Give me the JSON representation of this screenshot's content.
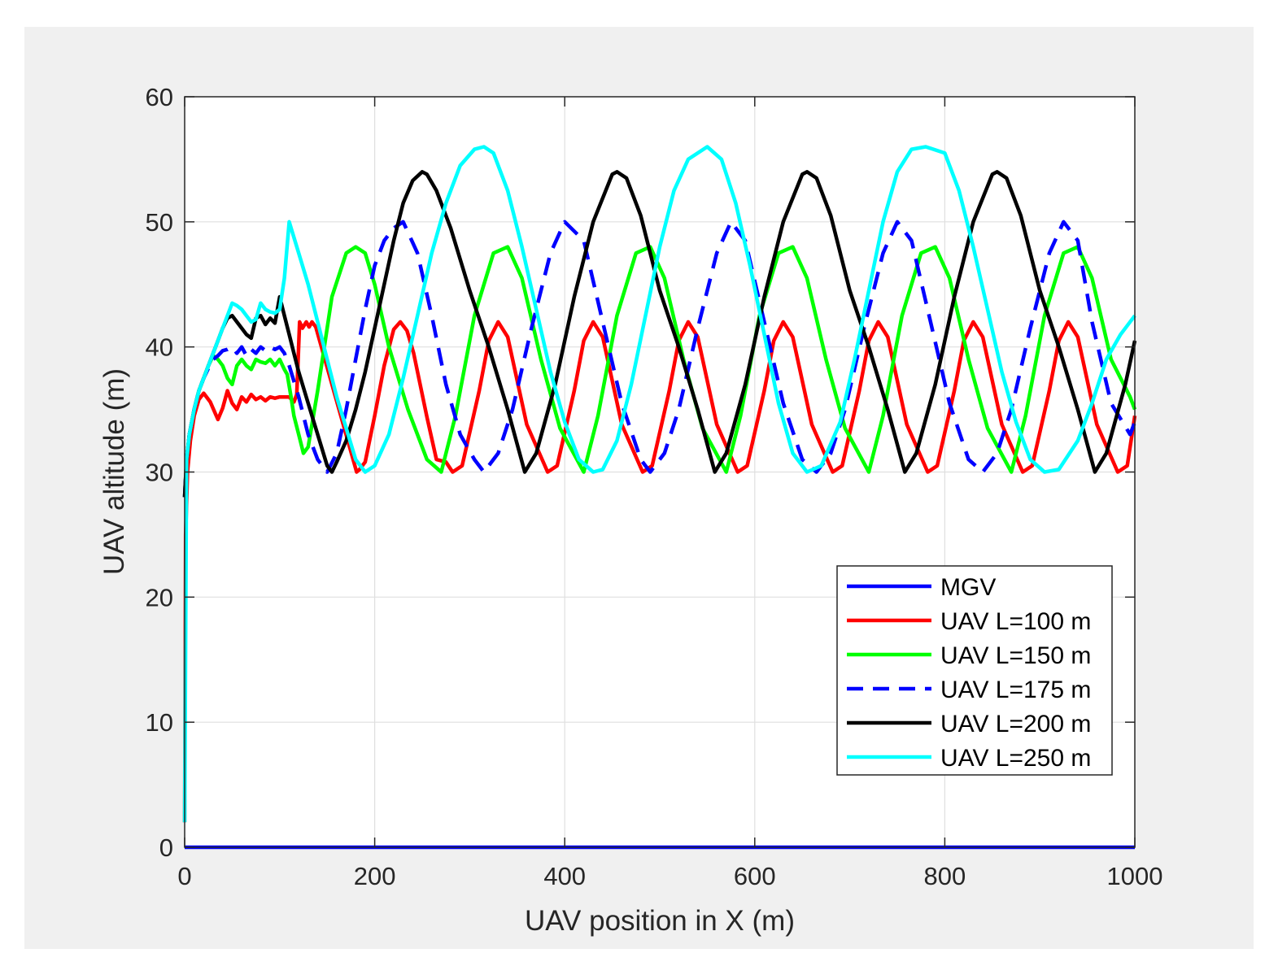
{
  "chart_data": {
    "type": "line",
    "title": "",
    "xlabel": "UAV position in X (m)",
    "ylabel": "UAV altitude (m)",
    "xlim": [
      0,
      1000
    ],
    "ylim": [
      0,
      60
    ],
    "xticks": [
      0,
      200,
      400,
      600,
      800,
      1000
    ],
    "yticks": [
      0,
      10,
      20,
      30,
      40,
      50,
      60
    ],
    "xtick_labels": [
      "0",
      "200",
      "400",
      "600",
      "800",
      "1000"
    ],
    "ytick_labels": [
      "0",
      "10",
      "20",
      "30",
      "40",
      "50",
      "60"
    ],
    "grid": true,
    "legend_position": "bottom-right",
    "series": [
      {
        "name": "MGV",
        "color": "#0000ff",
        "dash": "solid",
        "x": [
          0,
          1000
        ],
        "y": [
          0,
          0
        ]
      },
      {
        "name": "UAV L=100 m",
        "color": "#ff0000",
        "dash": "solid",
        "x": [
          0,
          1,
          3,
          6,
          10,
          15,
          20,
          27,
          35,
          40,
          45,
          50,
          55,
          60,
          65,
          70,
          75,
          80,
          85,
          90,
          95,
          100,
          110,
          115,
          118,
          121,
          124,
          128,
          131,
          134,
          138,
          181,
          184,
          190,
          200,
          210,
          220,
          227,
          234,
          241,
          247,
          255,
          265,
          275,
          282,
          292,
          310,
          320,
          330,
          340,
          360,
          382,
          392,
          410,
          420,
          430,
          440,
          460,
          482,
          492,
          510,
          520,
          530,
          540,
          560,
          582,
          592,
          610,
          620,
          630,
          640,
          660,
          682,
          692,
          710,
          720,
          730,
          740,
          760,
          782,
          792,
          810,
          820,
          830,
          840,
          860,
          882,
          892,
          910,
          920,
          930,
          940,
          960,
          982,
          992,
          1000
        ],
        "y": [
          2,
          25,
          30,
          32.5,
          34.5,
          35.8,
          36.3,
          35.6,
          34.2,
          35.1,
          36.5,
          35.5,
          35.0,
          36.0,
          35.6,
          36.2,
          35.8,
          36.0,
          35.7,
          36.0,
          35.9,
          36.0,
          36.0,
          35.6,
          36.2,
          42.0,
          41.5,
          42.0,
          41.6,
          42.0,
          41.6,
          30.0,
          30.2,
          30.8,
          34.5,
          38.5,
          41.4,
          42.0,
          41.3,
          39.5,
          37.3,
          34.4,
          31.0,
          30.8,
          30.0,
          30.5,
          36.5,
          40.5,
          42.0,
          40.8,
          33.8,
          30.0,
          30.5,
          36.5,
          40.5,
          42.0,
          40.8,
          33.8,
          30.0,
          30.5,
          36.5,
          40.5,
          42.0,
          40.8,
          33.8,
          30.0,
          30.5,
          36.5,
          40.5,
          42.0,
          40.8,
          33.8,
          30.0,
          30.5,
          36.5,
          40.5,
          42.0,
          40.8,
          33.8,
          30.0,
          30.5,
          36.5,
          40.5,
          42.0,
          40.8,
          33.8,
          30.0,
          30.5,
          36.5,
          40.5,
          42.0,
          40.8,
          33.8,
          30.0,
          30.5,
          34.5
        ]
      },
      {
        "name": "UAV L=150 m",
        "color": "#00ff00",
        "dash": "solid",
        "x": [
          0,
          2,
          5,
          10,
          15,
          20,
          25,
          30,
          35,
          40,
          45,
          50,
          55,
          60,
          65,
          70,
          75,
          80,
          85,
          90,
          95,
          100,
          105,
          108,
          112,
          115,
          120,
          125,
          130,
          140,
          155,
          170,
          180,
          190,
          200,
          215,
          235,
          255,
          270,
          285,
          305,
          325,
          340,
          355,
          375,
          395,
          420,
          435,
          455,
          475,
          490,
          505,
          525,
          545,
          570,
          585,
          605,
          625,
          640,
          655,
          675,
          695,
          720,
          735,
          755,
          775,
          790,
          805,
          825,
          845,
          870,
          885,
          905,
          925,
          940,
          955,
          975,
          995,
          1000
        ],
        "y": [
          28,
          31,
          33,
          35,
          36.5,
          37.5,
          38.5,
          39.3,
          39.0,
          38.5,
          37.5,
          37.0,
          38.5,
          39.0,
          38.5,
          38.2,
          39.0,
          38.8,
          38.7,
          39.0,
          38.5,
          39.0,
          38.2,
          37.8,
          36.0,
          34.5,
          33.0,
          31.5,
          32.0,
          36.5,
          44.0,
          47.5,
          48.0,
          47.5,
          45.0,
          40.0,
          35.0,
          31.0,
          30.0,
          34.5,
          42.5,
          47.5,
          48.0,
          45.5,
          39.0,
          33.5,
          30.0,
          34.5,
          42.5,
          47.5,
          48.0,
          45.5,
          39.0,
          33.5,
          30.0,
          34.5,
          42.5,
          47.5,
          48.0,
          45.5,
          39.0,
          33.5,
          30.0,
          34.5,
          42.5,
          47.5,
          48.0,
          45.5,
          39.0,
          33.5,
          30.0,
          34.5,
          42.5,
          47.5,
          48.0,
          45.5,
          39.0,
          36.0,
          35.0
        ]
      },
      {
        "name": "UAV L=175 m",
        "color": "#0000ff",
        "dash": "dashed",
        "x": [
          0,
          2,
          5,
          10,
          15,
          20,
          25,
          30,
          35,
          40,
          45,
          50,
          55,
          60,
          65,
          70,
          75,
          80,
          85,
          90,
          95,
          100,
          105,
          110,
          120,
          130,
          140,
          150,
          160,
          170,
          180,
          190,
          200,
          210,
          220,
          230,
          245,
          260,
          275,
          290,
          305,
          315,
          330,
          345,
          365,
          385,
          400,
          420,
          440,
          460,
          480,
          490,
          505,
          520,
          540,
          560,
          575,
          590,
          610,
          630,
          650,
          665,
          680,
          695,
          715,
          735,
          750,
          765,
          785,
          805,
          825,
          840,
          855,
          870,
          890,
          910,
          925,
          940,
          955,
          975,
          995,
          1000
        ],
        "y": [
          28,
          31,
          33,
          35,
          36.5,
          37.5,
          38.3,
          39.0,
          39.3,
          39.7,
          39.8,
          40.0,
          39.5,
          40.0,
          39.3,
          39.8,
          39.5,
          40.0,
          39.7,
          40.0,
          39.8,
          40.0,
          39.5,
          38.5,
          36.0,
          33.0,
          31.0,
          30.0,
          31.5,
          35.0,
          39.0,
          43.0,
          46.5,
          48.5,
          49.5,
          50.0,
          47.5,
          42.5,
          37.0,
          33.0,
          31.0,
          30.0,
          31.5,
          35.0,
          41.5,
          47.5,
          50.0,
          48.5,
          42.0,
          35.5,
          31.0,
          30.0,
          31.5,
          35.0,
          41.5,
          47.5,
          50.0,
          48.5,
          42.0,
          35.5,
          31.0,
          30.0,
          31.5,
          35.0,
          41.5,
          47.5,
          50.0,
          48.5,
          42.0,
          35.5,
          31.0,
          30.0,
          31.5,
          35.0,
          41.5,
          47.5,
          50.0,
          48.5,
          42.0,
          35.5,
          33.0,
          34.0
        ]
      },
      {
        "name": "UAV L=200 m",
        "color": "#000000",
        "dash": "solid",
        "x": [
          0,
          2,
          5,
          10,
          15,
          20,
          25,
          30,
          35,
          40,
          45,
          50,
          55,
          60,
          65,
          70,
          75,
          80,
          85,
          90,
          95,
          100,
          105,
          110,
          115,
          120,
          130,
          140,
          150,
          155,
          160,
          170,
          180,
          190,
          200,
          210,
          220,
          230,
          240,
          250,
          255,
          265,
          280,
          300,
          320,
          340,
          358,
          370,
          390,
          410,
          430,
          450,
          455,
          465,
          480,
          500,
          520,
          540,
          558,
          570,
          590,
          610,
          630,
          650,
          655,
          665,
          680,
          700,
          720,
          740,
          758,
          770,
          790,
          810,
          830,
          850,
          855,
          865,
          880,
          900,
          920,
          940,
          958,
          970,
          990,
          1000
        ],
        "y": [
          28,
          31,
          33,
          35,
          36.5,
          37.5,
          38.5,
          39.5,
          40.5,
          41.5,
          42.3,
          42.5,
          42.0,
          41.5,
          41.0,
          40.7,
          42.3,
          42.5,
          41.8,
          42.3,
          41.9,
          44.0,
          42.5,
          41.0,
          39.5,
          38.0,
          35.5,
          33.0,
          30.5,
          30.0,
          30.8,
          32.5,
          35.0,
          38.0,
          41.5,
          45.0,
          48.5,
          51.5,
          53.3,
          54.0,
          53.8,
          52.5,
          49.5,
          44.5,
          40.0,
          35.0,
          30.0,
          31.5,
          37.0,
          44.0,
          50.0,
          53.8,
          54.0,
          53.5,
          50.5,
          44.5,
          40.0,
          35.0,
          30.0,
          31.5,
          37.0,
          44.0,
          50.0,
          53.8,
          54.0,
          53.5,
          50.5,
          44.5,
          40.0,
          35.0,
          30.0,
          31.5,
          37.0,
          44.0,
          50.0,
          53.8,
          54.0,
          53.5,
          50.5,
          44.5,
          40.0,
          35.0,
          30.0,
          31.5,
          37.0,
          40.5
        ]
      },
      {
        "name": "UAV L=250 m",
        "color": "#00ffff",
        "dash": "solid",
        "x": [
          0,
          2,
          5,
          10,
          15,
          20,
          25,
          30,
          35,
          40,
          45,
          50,
          55,
          60,
          65,
          70,
          75,
          80,
          85,
          90,
          95,
          100,
          105,
          110,
          120,
          130,
          140,
          150,
          160,
          170,
          180,
          190,
          200,
          215,
          230,
          245,
          260,
          275,
          290,
          305,
          315,
          325,
          340,
          355,
          370,
          385,
          400,
          415,
          430,
          440,
          455,
          470,
          485,
          500,
          515,
          530,
          550,
          565,
          580,
          595,
          610,
          625,
          640,
          655,
          670,
          690,
          705,
          720,
          735,
          750,
          765,
          780,
          800,
          815,
          830,
          845,
          860,
          875,
          890,
          905,
          920,
          940,
          955,
          970,
          985,
          1000
        ],
        "y": [
          2,
          31,
          33,
          35,
          36.5,
          37.5,
          38.5,
          39.5,
          40.5,
          41.5,
          42.5,
          43.5,
          43.3,
          43.0,
          42.5,
          42.0,
          42.2,
          43.5,
          43.0,
          42.8,
          42.7,
          43.0,
          45.5,
          50.0,
          47.5,
          45.0,
          42.0,
          39.0,
          36.0,
          33.5,
          31.0,
          30.0,
          30.5,
          33.0,
          37.5,
          42.5,
          47.5,
          51.5,
          54.5,
          55.8,
          56.0,
          55.5,
          52.5,
          48.0,
          43.0,
          38.0,
          34.0,
          31.0,
          30.0,
          30.2,
          32.5,
          37.0,
          42.5,
          48.0,
          52.5,
          55.0,
          56.0,
          55.0,
          51.5,
          46.5,
          41.0,
          35.5,
          31.5,
          30.0,
          30.5,
          34.0,
          39.0,
          44.5,
          50.0,
          54.0,
          55.8,
          56.0,
          55.5,
          52.5,
          48.0,
          43.0,
          38.0,
          34.0,
          31.0,
          30.0,
          30.2,
          32.5,
          35.5,
          39.0,
          41.0,
          42.5
        ]
      }
    ]
  }
}
